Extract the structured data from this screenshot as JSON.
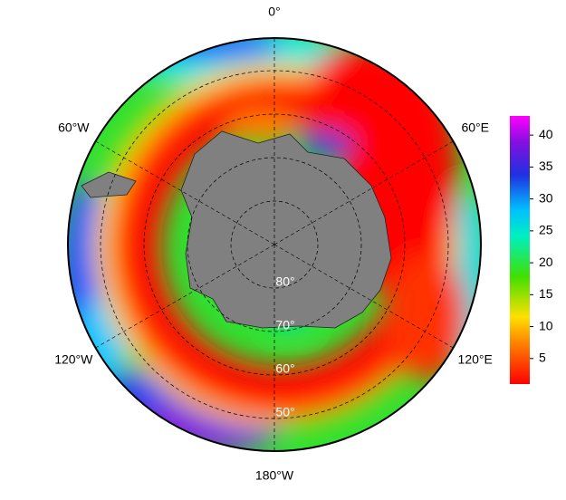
{
  "map": {
    "type": "polar-stereographic",
    "lat_range": [
      90,
      42.5
    ],
    "longitude_labels": [
      {
        "value": 0,
        "label": "0°"
      },
      {
        "value": 60,
        "label": "60°E"
      },
      {
        "value": 120,
        "label": "120°E"
      },
      {
        "value": 180,
        "label": "180°W"
      },
      {
        "value": 240,
        "label": "120°W"
      },
      {
        "value": 300,
        "label": "60°W"
      }
    ],
    "latitude_labels": [
      {
        "value": 80,
        "label": "80°"
      },
      {
        "value": 70,
        "label": "70°"
      },
      {
        "value": 60,
        "label": "60°"
      },
      {
        "value": 50,
        "label": "50°"
      }
    ]
  },
  "colorbar": {
    "range": [
      1,
      43
    ],
    "ticks": [
      5,
      10,
      15,
      20,
      25,
      30,
      35,
      40
    ]
  }
}
